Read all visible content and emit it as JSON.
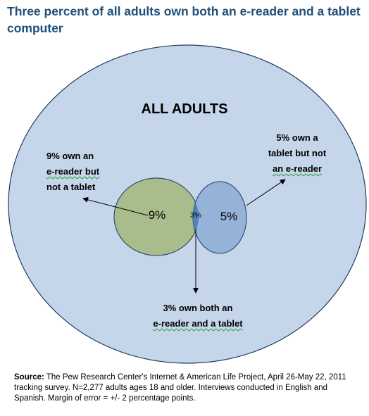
{
  "title": "Three percent of all adults own both an e-reader and a tablet computer",
  "diagram": {
    "heading": "ALL ADULTS",
    "circles": [
      {
        "label": "9%",
        "color": "#a9bc8c"
      },
      {
        "label": "5%",
        "color": "#95b2d8"
      },
      {
        "label": "3%",
        "color": "#4f81bd"
      }
    ],
    "callouts": {
      "ereader_only": [
        "9% own an",
        "e-reader but",
        "not a tablet"
      ],
      "tablet_only": [
        "5% own a",
        "tablet but not",
        "an e-reader"
      ],
      "both": [
        "3% own both an",
        "e-reader and a tablet"
      ]
    },
    "outer_color": "#c5d6ea",
    "outline_color": "#1f3a5f"
  },
  "source": {
    "label": "Source:",
    "text": "The Pew Research Center's Internet & American Life Project, April 26-May 22, 2011 tracking survey. N=2,277 adults ages 18 and older. Interviews conducted in English and Spanish. Margin of error = +/- 2 percentage points."
  }
}
